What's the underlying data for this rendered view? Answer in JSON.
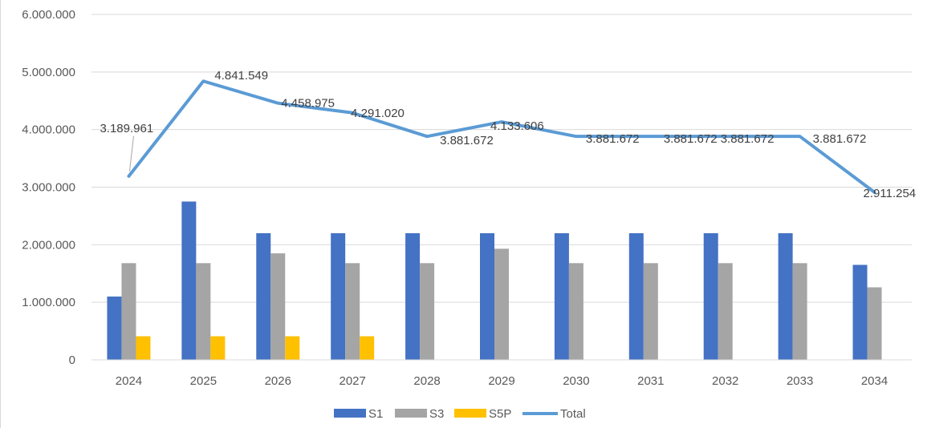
{
  "chart_data": {
    "type": "bar",
    "title": "",
    "xlabel": "",
    "ylabel": "",
    "categories": [
      "2024",
      "2025",
      "2026",
      "2027",
      "2028",
      "2029",
      "2030",
      "2031",
      "2032",
      "2033",
      "2034"
    ],
    "ylim": [
      0,
      6000000
    ],
    "yticks": [
      0,
      1000000,
      2000000,
      3000000,
      4000000,
      5000000,
      6000000
    ],
    "ytick_labels": [
      "0",
      "1.000.000",
      "2.000.000",
      "3.000.000",
      "4.000.000",
      "5.000.000",
      "6.000.000"
    ],
    "grid": true,
    "legend_position": "bottom",
    "series": [
      {
        "name": "S1",
        "kind": "bar",
        "color": "#4472C4",
        "values": [
          1100000,
          2750000,
          2200000,
          2200000,
          2200000,
          2200000,
          2200000,
          2200000,
          2200000,
          2200000,
          1650000
        ]
      },
      {
        "name": "S3",
        "kind": "bar",
        "color": "#A5A5A5",
        "values": [
          1680000,
          1680000,
          1850000,
          1680000,
          1680000,
          1930000,
          1680000,
          1680000,
          1680000,
          1680000,
          1260000
        ]
      },
      {
        "name": "S5P",
        "kind": "bar",
        "color": "#FFC000",
        "values": [
          410000,
          410000,
          410000,
          410000,
          0,
          0,
          0,
          0,
          0,
          0,
          0
        ]
      },
      {
        "name": "Total",
        "kind": "line",
        "color": "#5B9BD5",
        "values": [
          3189961,
          4841549,
          4458975,
          4291020,
          3881672,
          4133606,
          3881672,
          3881672,
          3881672,
          3881672,
          2911254
        ],
        "labels": [
          "3.189.961",
          "4.841.549",
          "4.458.975",
          "4.291.020",
          "3.881.672",
          "4.133.606",
          "3.881.672",
          "3.881.672",
          "3.881.672",
          "3.881.672",
          "2.911.254"
        ]
      }
    ]
  }
}
